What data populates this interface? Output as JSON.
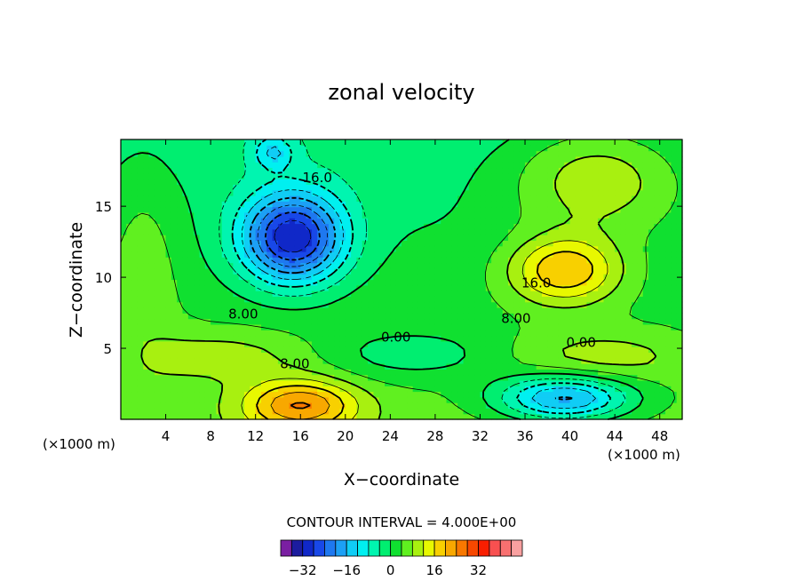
{
  "chart_data": {
    "type": "heatmap",
    "title": "zonal velocity",
    "xlabel": "X−coordinate",
    "ylabel": "Z−coordinate",
    "x_unit_label": "(×1000 m)",
    "y_unit_label": "(×1000 m)",
    "xlim": [
      0,
      50
    ],
    "ylim": [
      0,
      19.7
    ],
    "x_ticks": [
      "4",
      "8",
      "12",
      "16",
      "20",
      "24",
      "28",
      "32",
      "36",
      "40",
      "44",
      "48"
    ],
    "y_ticks": [
      "5",
      "10",
      "15"
    ],
    "contour_interval_text": "CONTOUR INTERVAL = 4.000E+00",
    "contour_labels": [
      {
        "text": "16.0",
        "x": 17.5,
        "y": 17.0
      },
      {
        "text": "8.00",
        "x": 10.9,
        "y": 7.4
      },
      {
        "text": "0.00",
        "x": 24.5,
        "y": 5.8
      },
      {
        "text": "8.00",
        "x": 15.5,
        "y": 3.9
      },
      {
        "text": "8.00",
        "x": 35.2,
        "y": 7.1
      },
      {
        "text": "16.0",
        "x": 37.0,
        "y": 9.6
      },
      {
        "text": "0.00",
        "x": 41.0,
        "y": 5.4
      }
    ],
    "features": [
      {
        "name": "negative core upper left",
        "x": 15.3,
        "y": 12.8,
        "sx": 4.6,
        "sy": 3.2,
        "amp": -32
      },
      {
        "name": "negative small top",
        "x": 13.6,
        "y": 18.8,
        "sx": 1.8,
        "sy": 1.2,
        "amp": -10
      },
      {
        "name": "negative lower right",
        "x": 39.5,
        "y": 1.5,
        "sx": 6.0,
        "sy": 1.6,
        "amp": -22
      },
      {
        "name": "positive core upper right",
        "x": 39.5,
        "y": 10.5,
        "sx": 5.0,
        "sy": 2.4,
        "amp": 18
      },
      {
        "name": "positive upper right broad",
        "x": 42.5,
        "y": 17.0,
        "sx": 8.0,
        "sy": 4.0,
        "amp": 12
      },
      {
        "name": "positive bottom left",
        "x": 16.0,
        "y": 1.0,
        "sx": 5.0,
        "sy": 1.8,
        "amp": 19
      },
      {
        "name": "positive left column",
        "x": 2.0,
        "y": 12.0,
        "sx": 3.5,
        "sy": 8.0,
        "amp": 5
      }
    ],
    "colorbar": {
      "colors": [
        "#7a1fa2",
        "#1c1c9e",
        "#1028c8",
        "#1848e8",
        "#1e78f0",
        "#1ca0f5",
        "#10cdf5",
        "#00f0f0",
        "#00f5b0",
        "#00ee70",
        "#10e030",
        "#60f020",
        "#a8f010",
        "#e8f800",
        "#f8d000",
        "#f8a800",
        "#f87800",
        "#f84800",
        "#f81e00",
        "#f85050",
        "#f87070",
        "#f8a0a0"
      ],
      "min": -40,
      "step": 4,
      "tick_labels": [
        "−32",
        "−16",
        "0",
        "16",
        "32"
      ],
      "tick_values": [
        -32,
        -16,
        0,
        16,
        32
      ]
    }
  }
}
